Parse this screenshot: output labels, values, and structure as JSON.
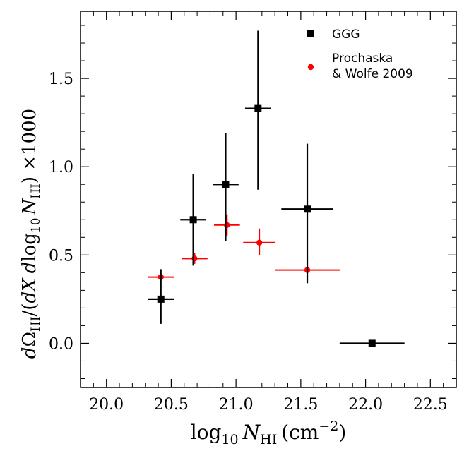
{
  "chart_data": {
    "type": "scatter",
    "xlabel": {
      "base": "log",
      "base_sub": "10",
      "var": "N",
      "var_sub": "HI",
      "unit": "(cm",
      "unit_sup": "−2",
      "unit_end": ")"
    },
    "ylabel": {
      "d1": "d",
      "omega": "Ω",
      "omega_sub": "HI",
      "mid": "/(",
      "dx": "dX",
      "d2": "d",
      "log": "log",
      "log_sub": "10",
      "var": "N",
      "var_sub": "HI",
      "end": ") ×1000"
    },
    "xlim": [
      19.8,
      22.7
    ],
    "ylim": [
      -0.25,
      1.88
    ],
    "x_ticks": [
      20.0,
      20.5,
      21.0,
      21.5,
      22.0,
      22.5
    ],
    "x_tick_labels": [
      "20.0",
      "20.5",
      "21.0",
      "21.5",
      "22.0",
      "22.5"
    ],
    "y_ticks": [
      0.0,
      0.5,
      1.0,
      1.5
    ],
    "y_tick_labels": [
      "0.0",
      "0.5",
      "1.0",
      "1.5"
    ],
    "grid": false,
    "legend_position": "top-right",
    "series": [
      {
        "name": "GGG",
        "marker": "square",
        "color": "#000000",
        "points": [
          {
            "x": 20.42,
            "y": 0.25,
            "xerr": [
              0.1,
              0.1
            ],
            "yerr": [
              0.14,
              0.17
            ]
          },
          {
            "x": 20.67,
            "y": 0.7,
            "xerr": [
              0.1,
              0.1
            ],
            "yerr": [
              0.26,
              0.26
            ]
          },
          {
            "x": 20.92,
            "y": 0.9,
            "xerr": [
              0.1,
              0.1
            ],
            "yerr": [
              0.32,
              0.29
            ]
          },
          {
            "x": 21.17,
            "y": 1.33,
            "xerr": [
              0.1,
              0.1
            ],
            "yerr": [
              0.46,
              0.44
            ]
          },
          {
            "x": 21.55,
            "y": 0.76,
            "xerr": [
              0.2,
              0.2
            ],
            "yerr": [
              0.42,
              0.37
            ]
          },
          {
            "x": 22.05,
            "y": 0.0,
            "xerr": [
              0.25,
              0.25
            ],
            "yerr": [
              0.0,
              0.0
            ]
          }
        ]
      },
      {
        "name": "Prochaska\n& Wolfe 2009",
        "marker": "circle",
        "color": "#ff0000",
        "points": [
          {
            "x": 20.42,
            "y": 0.375,
            "xerr": [
              0.1,
              0.1
            ],
            "yerr": [
              0.02,
              0.02
            ]
          },
          {
            "x": 20.68,
            "y": 0.48,
            "xerr": [
              0.1,
              0.1
            ],
            "yerr": [
              0.03,
              0.03
            ]
          },
          {
            "x": 20.93,
            "y": 0.67,
            "xerr": [
              0.1,
              0.1
            ],
            "yerr": [
              0.06,
              0.06
            ]
          },
          {
            "x": 21.18,
            "y": 0.57,
            "xerr": [
              0.125,
              0.125
            ],
            "yerr": [
              0.07,
              0.08
            ]
          },
          {
            "x": 21.55,
            "y": 0.415,
            "xerr": [
              0.25,
              0.25
            ],
            "yerr": [
              0.07,
              0.07
            ]
          },
          {
            "x": 22.05,
            "y": 0.0,
            "xerr": [
              0.25,
              0.25
            ],
            "yerr": [
              0.0,
              0.0
            ]
          }
        ]
      }
    ]
  }
}
